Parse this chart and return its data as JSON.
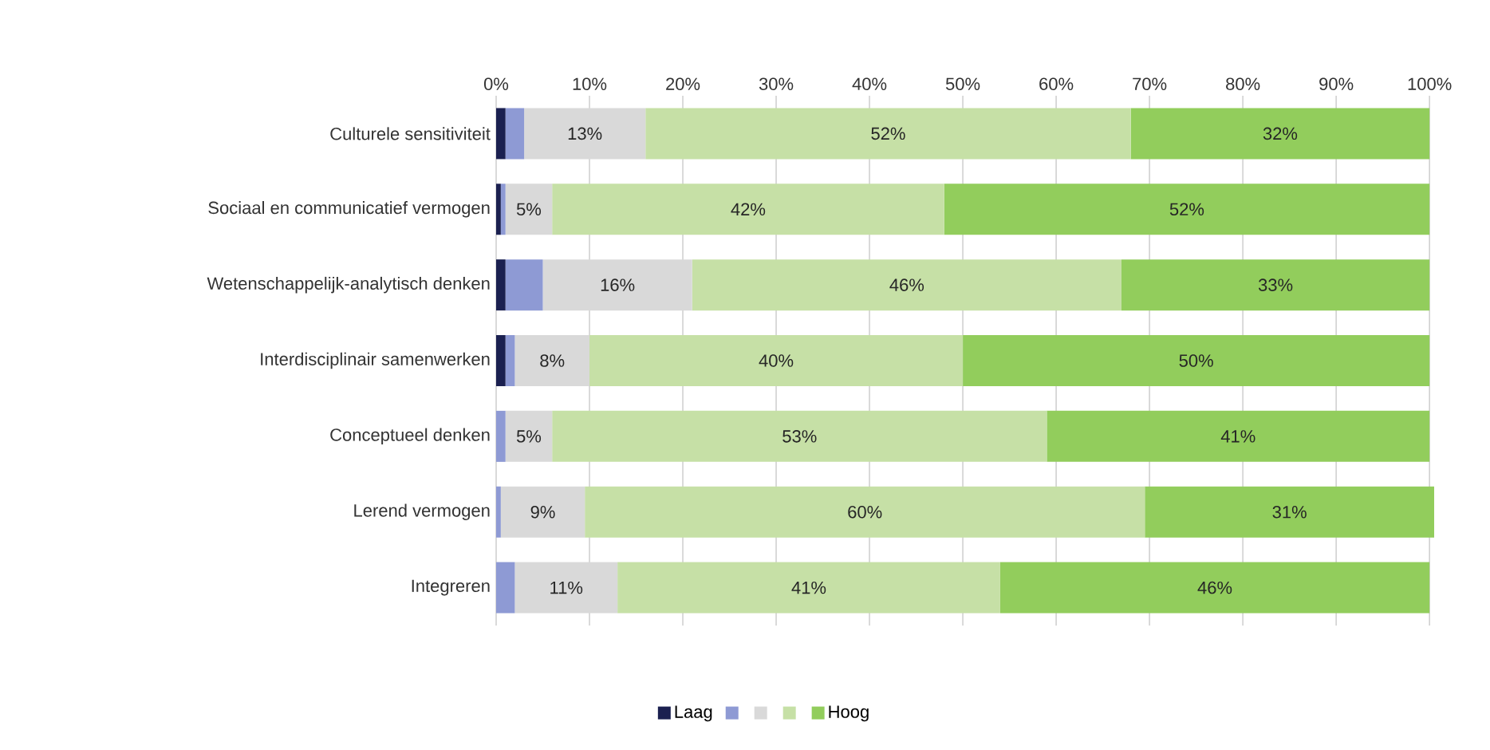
{
  "chart_data": {
    "type": "bar",
    "orientation": "horizontal",
    "stacked": true,
    "categories": [
      "Culturele sensitiviteit",
      "Sociaal  en communicatief vermogen",
      "Wetenschappelijk-analytisch denken",
      "Interdisciplinair samenwerken",
      "Conceptueel denken",
      "Lerend vermogen",
      "Integreren"
    ],
    "series": [
      {
        "name": "Laag",
        "color": "#1b2050",
        "values": [
          1,
          0.5,
          1,
          1,
          0,
          0,
          0
        ]
      },
      {
        "color": "#8e9ad4",
        "values": [
          2,
          0.5,
          4,
          1,
          1,
          0.5,
          2
        ]
      },
      {
        "color": "#d9d9d9",
        "values": [
          13,
          5,
          16,
          8,
          5,
          9,
          11
        ],
        "value_labels": [
          "13%",
          "5%",
          "16%",
          "8%",
          "5%",
          "9%",
          "11%"
        ]
      },
      {
        "color": "#c6e0a6",
        "values": [
          52,
          42,
          46,
          40,
          53,
          60,
          41
        ],
        "value_labels": [
          "52%",
          "42%",
          "46%",
          "40%",
          "53%",
          "60%",
          "41%"
        ]
      },
      {
        "name": "Hoog",
        "color": "#92cd5c",
        "values": [
          32,
          52,
          33,
          50,
          41,
          31,
          46
        ],
        "value_labels": [
          "32%",
          "52%",
          "33%",
          "50%",
          "41%",
          "31%",
          "46%"
        ]
      }
    ],
    "xlim": [
      0,
      100.5
    ],
    "xticks": [
      {
        "value": 0,
        "label": "0%"
      },
      {
        "value": 10,
        "label": "10%"
      },
      {
        "value": 20,
        "label": "20%"
      },
      {
        "value": 30,
        "label": "30%"
      },
      {
        "value": 40,
        "label": "40%"
      },
      {
        "value": 50,
        "label": "50%"
      },
      {
        "value": 60,
        "label": "60%"
      },
      {
        "value": 70,
        "label": "70%"
      },
      {
        "value": 80,
        "label": "80%"
      },
      {
        "value": 90,
        "label": "90%"
      },
      {
        "value": 100,
        "label": "100%"
      }
    ],
    "grid": "x",
    "legend": "bottom"
  }
}
